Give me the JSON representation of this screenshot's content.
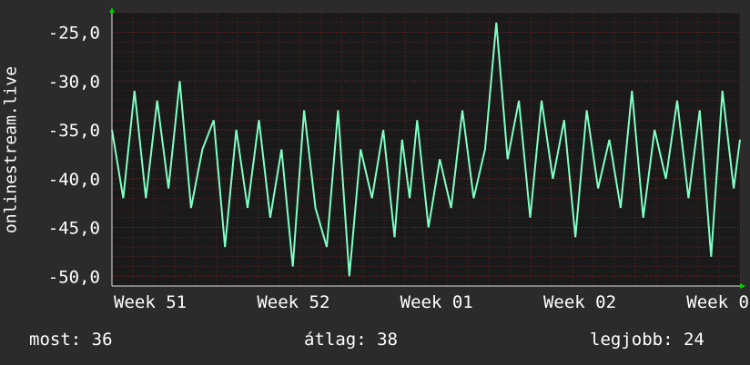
{
  "chart_data": {
    "type": "line",
    "ylabel": "onlinestream.live",
    "ylim": [
      -51,
      -23
    ],
    "y_ticks": [
      "-25,0",
      "-30,0",
      "-35,0",
      "-40,0",
      "-45,0",
      "-50,0"
    ],
    "y_tick_values": [
      -25,
      -30,
      -35,
      -40,
      -45,
      -50
    ],
    "x_ticks": [
      "Week 51",
      "Week 52",
      "Week 01",
      "Week 02",
      "Week 0"
    ],
    "x_tick_positions": [
      0.0,
      0.228,
      0.456,
      0.684,
      0.912
    ],
    "grid": true,
    "x": [
      0.0,
      0.018,
      0.036,
      0.054,
      0.072,
      0.09,
      0.108,
      0.126,
      0.144,
      0.162,
      0.18,
      0.198,
      0.216,
      0.234,
      0.252,
      0.27,
      0.288,
      0.306,
      0.324,
      0.342,
      0.36,
      0.378,
      0.396,
      0.414,
      0.432,
      0.45,
      0.462,
      0.474,
      0.486,
      0.504,
      0.522,
      0.54,
      0.558,
      0.576,
      0.594,
      0.612,
      0.63,
      0.648,
      0.666,
      0.684,
      0.702,
      0.72,
      0.738,
      0.756,
      0.774,
      0.792,
      0.81,
      0.828,
      0.846,
      0.864,
      0.882,
      0.9,
      0.918,
      0.936,
      0.954,
      0.972,
      0.99,
      1.0
    ],
    "values": [
      -35,
      -42,
      -31,
      -42,
      -32,
      -41,
      -30,
      -43,
      -37,
      -34,
      -47,
      -35,
      -43,
      -34,
      -44,
      -37,
      -49,
      -33,
      -43,
      -47,
      -33,
      -50,
      -37,
      -42,
      -35,
      -46,
      -36,
      -42,
      -34,
      -45,
      -38,
      -43,
      -33,
      -42,
      -37,
      -24,
      -38,
      -32,
      -44,
      -32,
      -40,
      -34,
      -46,
      -33,
      -41,
      -36,
      -43,
      -31,
      -44,
      -35,
      -40,
      -32,
      -42,
      -33,
      -48,
      -31,
      -41,
      -36
    ],
    "line_color": "#7fffc4",
    "grid_color": "#8a2a2a",
    "plot_bg": "#1a1a1a"
  },
  "stats": {
    "now_label": "most: 36",
    "avg_label": "átlag: 38",
    "max_label": "legjobb: 24"
  }
}
